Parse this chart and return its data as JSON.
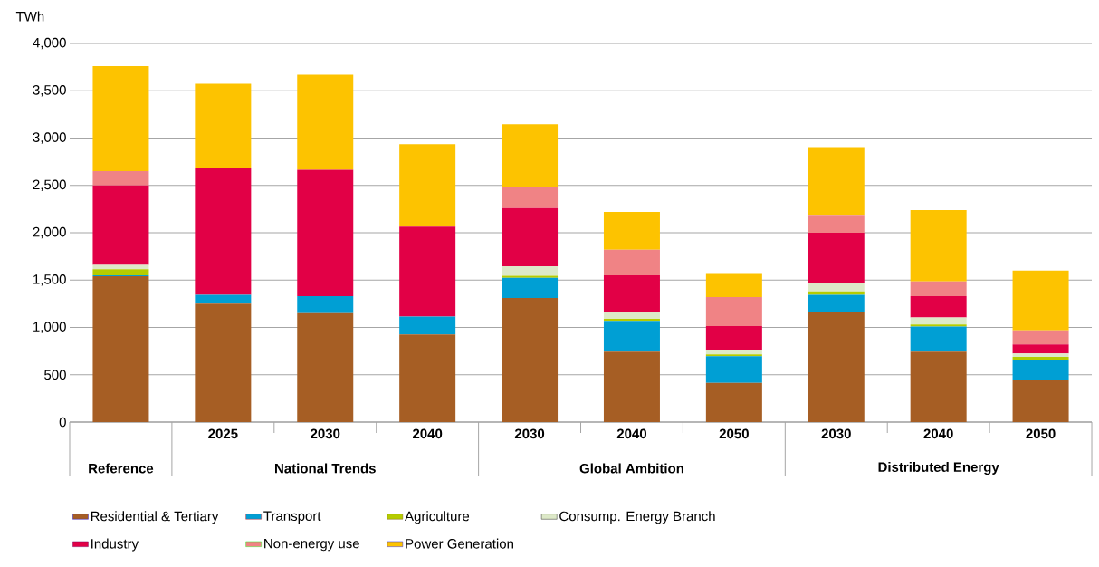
{
  "chart_data": {
    "type": "bar",
    "stacked": true,
    "ylabel": "TWh",
    "categories": [
      null,
      "2025",
      "2030",
      "2040",
      "2030",
      "2040",
      "2050",
      "2030",
      "2040",
      "2050"
    ],
    "annotations": [
      "Reference",
      "National Trends",
      "Global Ambition",
      "Distributed Energy"
    ],
    "series": [
      {
        "name": "Residential & Tertiary",
        "color": "#a65e24",
        "values": [
          1540,
          1250,
          1150,
          925,
          1310,
          745,
          415,
          1165,
          745,
          450
        ]
      },
      {
        "name": "Transport",
        "color": "#009fd4",
        "values": [
          10,
          95,
          180,
          190,
          215,
          325,
          280,
          180,
          265,
          210
        ]
      },
      {
        "name": "Agriculture",
        "color": "#b5cc00",
        "values": [
          65,
          0,
          0,
          0,
          20,
          20,
          20,
          35,
          20,
          30
        ]
      },
      {
        "name": "Consump. Energy Branch",
        "color": "#dde9c8",
        "values": [
          45,
          0,
          0,
          0,
          100,
          75,
          50,
          85,
          75,
          35
        ]
      },
      {
        "name": "Industry",
        "color": "#e20046",
        "values": [
          840,
          1340,
          1335,
          950,
          615,
          385,
          250,
          535,
          225,
          95
        ]
      },
      {
        "name": "Non-energy use",
        "color": "#f08385",
        "values": [
          150,
          0,
          0,
          0,
          225,
          270,
          305,
          190,
          155,
          150
        ]
      },
      {
        "name": "Power Generation",
        "color": "#fdc300",
        "values": [
          1110,
          890,
          1005,
          870,
          660,
          400,
          255,
          715,
          755,
          630
        ]
      }
    ],
    "ylim": [
      0,
      4000
    ],
    "yticks": [
      0,
      500,
      {
        "value": 1000,
        "label": "1,000"
      },
      {
        "value": 1500,
        "label": "1,500"
      },
      {
        "value": 2000,
        "label": "2,000"
      },
      {
        "value": 2500,
        "label": "2,500"
      },
      {
        "value": 3000,
        "label": "3,000"
      },
      {
        "value": 3500,
        "label": "3,500"
      },
      {
        "value": 4000,
        "label": "4,000"
      }
    ],
    "grid": "y",
    "legend": "bottom"
  }
}
